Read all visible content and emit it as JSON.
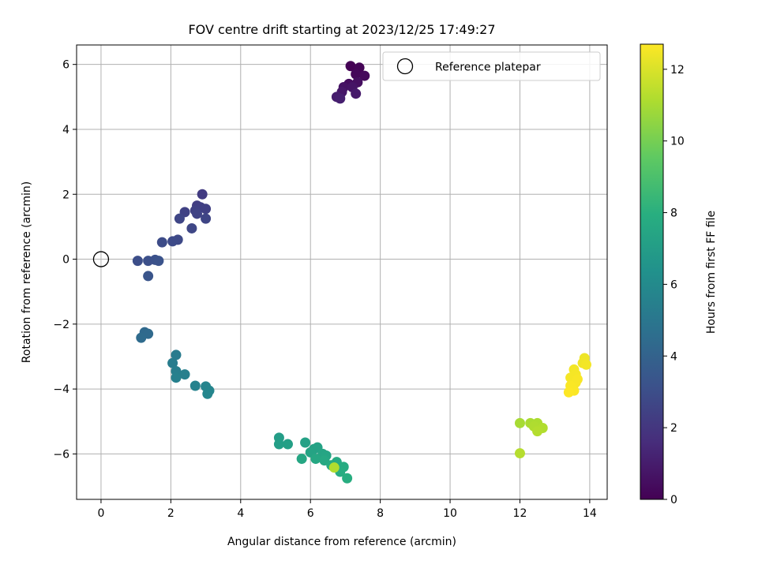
{
  "chart_data": {
    "type": "scatter",
    "title": "FOV centre drift starting at 2023/12/25 17:49:27",
    "xlabel": "Angular distance from reference (arcmin)",
    "ylabel": "Rotation from reference (arcmin)",
    "xlim": [
      -0.7,
      14.5
    ],
    "ylim": [
      -7.4,
      6.6
    ],
    "xticks": [
      0,
      2,
      4,
      6,
      8,
      10,
      12,
      14
    ],
    "yticks": [
      -6,
      -4,
      -2,
      0,
      2,
      4,
      6
    ],
    "grid": true,
    "legend": {
      "placement": "upper right",
      "entries": [
        "Reference platepar"
      ]
    },
    "reference_point": {
      "label": "Reference platepar",
      "x": 0,
      "y": 0
    },
    "colorbar": {
      "label": "Hours from first FF file",
      "range": [
        0,
        12.7
      ],
      "ticks": [
        0,
        2,
        4,
        6,
        8,
        10,
        12
      ],
      "colormap": "viridis"
    },
    "points": [
      {
        "x": 7.15,
        "y": 5.95,
        "c": 0.0
      },
      {
        "x": 7.4,
        "y": 5.9,
        "c": 0.1
      },
      {
        "x": 7.3,
        "y": 5.7,
        "c": 0.2
      },
      {
        "x": 7.55,
        "y": 5.65,
        "c": 0.3
      },
      {
        "x": 7.1,
        "y": 5.4,
        "c": 0.4
      },
      {
        "x": 7.35,
        "y": 5.45,
        "c": 0.5
      },
      {
        "x": 6.95,
        "y": 5.3,
        "c": 0.6
      },
      {
        "x": 7.2,
        "y": 5.3,
        "c": 0.7
      },
      {
        "x": 6.9,
        "y": 5.15,
        "c": 0.8
      },
      {
        "x": 7.3,
        "y": 5.1,
        "c": 0.9
      },
      {
        "x": 6.75,
        "y": 5.0,
        "c": 1.0
      },
      {
        "x": 6.85,
        "y": 4.95,
        "c": 1.1
      },
      {
        "x": 2.9,
        "y": 2.0,
        "c": 2.2
      },
      {
        "x": 2.75,
        "y": 1.65,
        "c": 2.3
      },
      {
        "x": 2.85,
        "y": 1.6,
        "c": 2.35
      },
      {
        "x": 3.0,
        "y": 1.55,
        "c": 2.4
      },
      {
        "x": 2.7,
        "y": 1.5,
        "c": 2.45
      },
      {
        "x": 2.4,
        "y": 1.45,
        "c": 2.5
      },
      {
        "x": 2.75,
        "y": 1.4,
        "c": 2.55
      },
      {
        "x": 3.0,
        "y": 1.25,
        "c": 2.6
      },
      {
        "x": 2.25,
        "y": 1.25,
        "c": 2.65
      },
      {
        "x": 2.6,
        "y": 0.95,
        "c": 2.7
      },
      {
        "x": 2.2,
        "y": 0.6,
        "c": 2.8
      },
      {
        "x": 2.05,
        "y": 0.55,
        "c": 2.85
      },
      {
        "x": 1.75,
        "y": 0.52,
        "c": 2.9
      },
      {
        "x": 1.05,
        "y": -0.05,
        "c": 3.0
      },
      {
        "x": 1.35,
        "y": -0.05,
        "c": 3.1
      },
      {
        "x": 1.55,
        "y": -0.02,
        "c": 3.15
      },
      {
        "x": 1.65,
        "y": -0.05,
        "c": 3.2
      },
      {
        "x": 1.35,
        "y": -0.52,
        "c": 3.3
      },
      {
        "x": 1.25,
        "y": -2.25,
        "c": 4.3
      },
      {
        "x": 1.35,
        "y": -2.3,
        "c": 4.35
      },
      {
        "x": 1.15,
        "y": -2.42,
        "c": 4.4
      },
      {
        "x": 2.15,
        "y": -2.95,
        "c": 5.2
      },
      {
        "x": 2.05,
        "y": -3.2,
        "c": 5.3
      },
      {
        "x": 2.15,
        "y": -3.45,
        "c": 5.4
      },
      {
        "x": 2.4,
        "y": -3.55,
        "c": 5.45
      },
      {
        "x": 2.15,
        "y": -3.65,
        "c": 5.5
      },
      {
        "x": 2.7,
        "y": -3.9,
        "c": 5.6
      },
      {
        "x": 3.0,
        "y": -3.92,
        "c": 5.7
      },
      {
        "x": 3.1,
        "y": -4.05,
        "c": 5.75
      },
      {
        "x": 3.05,
        "y": -4.15,
        "c": 5.8
      },
      {
        "x": 5.1,
        "y": -5.5,
        "c": 7.0
      },
      {
        "x": 5.1,
        "y": -5.7,
        "c": 7.05
      },
      {
        "x": 5.35,
        "y": -5.7,
        "c": 7.1
      },
      {
        "x": 5.85,
        "y": -5.65,
        "c": 7.2
      },
      {
        "x": 6.1,
        "y": -5.85,
        "c": 7.25
      },
      {
        "x": 6.2,
        "y": -5.8,
        "c": 7.3
      },
      {
        "x": 6.0,
        "y": -5.95,
        "c": 7.35
      },
      {
        "x": 6.35,
        "y": -6.0,
        "c": 7.4
      },
      {
        "x": 6.45,
        "y": -6.05,
        "c": 7.45
      },
      {
        "x": 5.75,
        "y": -6.15,
        "c": 7.5
      },
      {
        "x": 6.15,
        "y": -6.15,
        "c": 7.55
      },
      {
        "x": 6.4,
        "y": -6.2,
        "c": 7.6
      },
      {
        "x": 6.75,
        "y": -6.25,
        "c": 7.7
      },
      {
        "x": 6.6,
        "y": -6.35,
        "c": 7.75
      },
      {
        "x": 6.95,
        "y": -6.4,
        "c": 7.8
      },
      {
        "x": 6.85,
        "y": -6.55,
        "c": 7.85
      },
      {
        "x": 7.05,
        "y": -6.75,
        "c": 7.9
      },
      {
        "x": 6.68,
        "y": -6.42,
        "c": 11.2
      },
      {
        "x": 12.0,
        "y": -5.05,
        "c": 11.0
      },
      {
        "x": 12.3,
        "y": -5.05,
        "c": 11.05
      },
      {
        "x": 12.5,
        "y": -5.05,
        "c": 11.1
      },
      {
        "x": 12.4,
        "y": -5.15,
        "c": 11.15
      },
      {
        "x": 12.65,
        "y": -5.2,
        "c": 11.2
      },
      {
        "x": 12.5,
        "y": -5.3,
        "c": 11.25
      },
      {
        "x": 12.0,
        "y": -5.98,
        "c": 11.3
      },
      {
        "x": 13.85,
        "y": -3.05,
        "c": 12.4
      },
      {
        "x": 13.8,
        "y": -3.2,
        "c": 12.45
      },
      {
        "x": 13.9,
        "y": -3.25,
        "c": 12.5
      },
      {
        "x": 13.55,
        "y": -3.4,
        "c": 12.5
      },
      {
        "x": 13.6,
        "y": -3.55,
        "c": 12.55
      },
      {
        "x": 13.45,
        "y": -3.65,
        "c": 12.55
      },
      {
        "x": 13.65,
        "y": -3.7,
        "c": 12.6
      },
      {
        "x": 13.55,
        "y": -3.85,
        "c": 12.6
      },
      {
        "x": 13.45,
        "y": -3.9,
        "c": 12.65
      },
      {
        "x": 13.55,
        "y": -4.05,
        "c": 12.65
      },
      {
        "x": 13.4,
        "y": -4.1,
        "c": 12.7
      },
      {
        "x": 13.6,
        "y": -3.8,
        "c": 12.6
      }
    ]
  }
}
